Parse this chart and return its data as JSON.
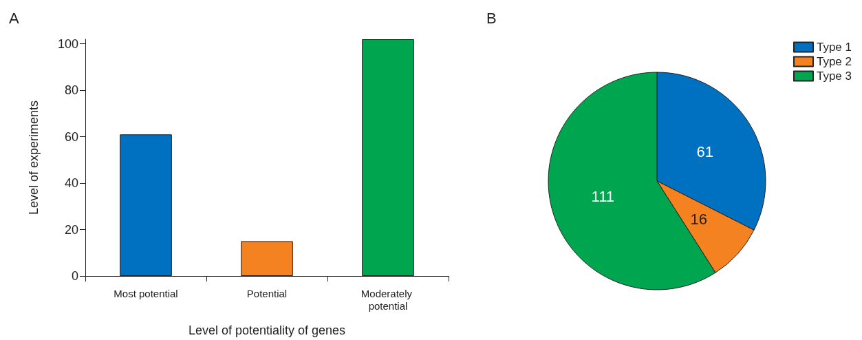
{
  "chart_data": [
    {
      "type": "bar",
      "title": "A",
      "xlabel": "Level of potentiality of genes",
      "ylabel": "Level of experiments",
      "categories": [
        "Most potential",
        "Potential",
        "Moderately potential"
      ],
      "values": [
        61,
        15,
        102
      ],
      "colors": [
        "#0070c0",
        "#f58220",
        "#00a54f"
      ],
      "ylim": [
        0,
        102
      ],
      "yticks": [
        0,
        20,
        40,
        60,
        80,
        100
      ],
      "grid": false,
      "legend": false
    },
    {
      "type": "pie",
      "title": "B",
      "categories": [
        "Type 1",
        "Type 2",
        "Type 3"
      ],
      "values": [
        61,
        16,
        111
      ],
      "colors": [
        "#0070c0",
        "#f58220",
        "#00a54f"
      ],
      "data_labels": true,
      "legend": "top right"
    }
  ]
}
